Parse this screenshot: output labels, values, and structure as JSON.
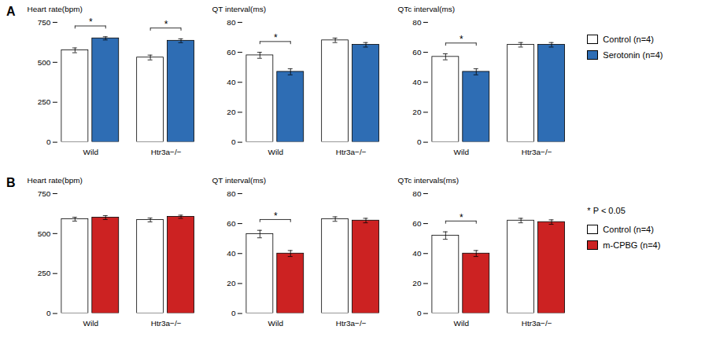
{
  "chart_data": [
    {
      "type": "bar",
      "title": "A",
      "ylabel": "Heart rate(bpm)",
      "categories": [
        "Wild",
        "Htr3a−/−"
      ],
      "series": [
        {
          "name": "Control (n=4)",
          "color": "#FFFFFF",
          "values": [
            575,
            530
          ],
          "errors": [
            15,
            15
          ]
        },
        {
          "name": "Serotonin (n=4)",
          "color": "#2E6DB4",
          "values": [
            650,
            635
          ],
          "errors": [
            10,
            12
          ]
        }
      ],
      "ylim": [
        0,
        750
      ],
      "yticks": [
        0,
        250,
        500,
        750
      ],
      "annotations": [
        {
          "text": "*",
          "category": "Wild"
        },
        {
          "text": "*",
          "category": "Htr3a−/−"
        }
      ]
    },
    {
      "type": "bar",
      "ylabel": "QT interval(ms)",
      "categories": [
        "Wild",
        "Htr3a−/−"
      ],
      "series": [
        {
          "name": "Control (n=4)",
          "color": "#FFFFFF",
          "values": [
            58,
            68
          ],
          "errors": [
            2,
            1.5
          ]
        },
        {
          "name": "Serotonin (n=4)",
          "color": "#2E6DB4",
          "values": [
            47,
            65
          ],
          "errors": [
            2,
            1.5
          ]
        }
      ],
      "ylim": [
        0,
        80
      ],
      "yticks": [
        0,
        20,
        40,
        60,
        80
      ],
      "annotations": [
        {
          "text": "*",
          "category": "Wild"
        }
      ]
    },
    {
      "type": "bar",
      "ylabel": "QTc interval(ms)",
      "categories": [
        "Wild",
        "Htr3a−/−"
      ],
      "series": [
        {
          "name": "Control (n=4)",
          "color": "#FFFFFF",
          "values": [
            57,
            65
          ],
          "errors": [
            2,
            1.5
          ]
        },
        {
          "name": "Serotonin (n=4)",
          "color": "#2E6DB4",
          "values": [
            47,
            65
          ],
          "errors": [
            2,
            1.5
          ]
        }
      ],
      "ylim": [
        0,
        80
      ],
      "yticks": [
        0,
        20,
        40,
        60,
        80
      ],
      "annotations": [
        {
          "text": "*",
          "category": "Wild"
        }
      ],
      "legend": "right"
    },
    {
      "type": "bar",
      "title": "B",
      "ylabel": "Heart rate(bpm)",
      "categories": [
        "Wild",
        "Htr3a−/−"
      ],
      "series": [
        {
          "name": "Control (n=4)",
          "color": "#FFFFFF",
          "values": [
            590,
            585
          ],
          "errors": [
            12,
            12
          ]
        },
        {
          "name": "m-CPBG (n=4)",
          "color": "#CC2222",
          "values": [
            600,
            605
          ],
          "errors": [
            12,
            10
          ]
        }
      ],
      "ylim": [
        0,
        750
      ],
      "yticks": [
        0,
        250,
        500,
        750
      ],
      "annotations": []
    },
    {
      "type": "bar",
      "ylabel": "QT interval(ms)",
      "categories": [
        "Wild",
        "Htr3a−/−"
      ],
      "series": [
        {
          "name": "Control (n=4)",
          "color": "#FFFFFF",
          "values": [
            53,
            63
          ],
          "errors": [
            2.5,
            1.5
          ]
        },
        {
          "name": "m-CPBG (n=4)",
          "color": "#CC2222",
          "values": [
            40,
            62
          ],
          "errors": [
            2,
            1.5
          ]
        }
      ],
      "ylim": [
        0,
        80
      ],
      "yticks": [
        0,
        20,
        40,
        60,
        80
      ],
      "annotations": [
        {
          "text": "*",
          "category": "Wild"
        }
      ]
    },
    {
      "type": "bar",
      "ylabel": "QTc intervals(ms)",
      "categories": [
        "Wild",
        "Htr3a−/−"
      ],
      "series": [
        {
          "name": "Control (n=4)",
          "color": "#FFFFFF",
          "values": [
            52,
            62
          ],
          "errors": [
            2.5,
            1.5
          ]
        },
        {
          "name": "m-CPBG (n=4)",
          "color": "#CC2222",
          "values": [
            40,
            61
          ],
          "errors": [
            2,
            1.5
          ]
        }
      ],
      "ylim": [
        0,
        80
      ],
      "yticks": [
        0,
        20,
        40,
        60,
        80
      ],
      "annotations": [
        {
          "text": "*",
          "category": "Wild"
        }
      ],
      "legend": "right",
      "caption": "* P < 0.05"
    }
  ]
}
